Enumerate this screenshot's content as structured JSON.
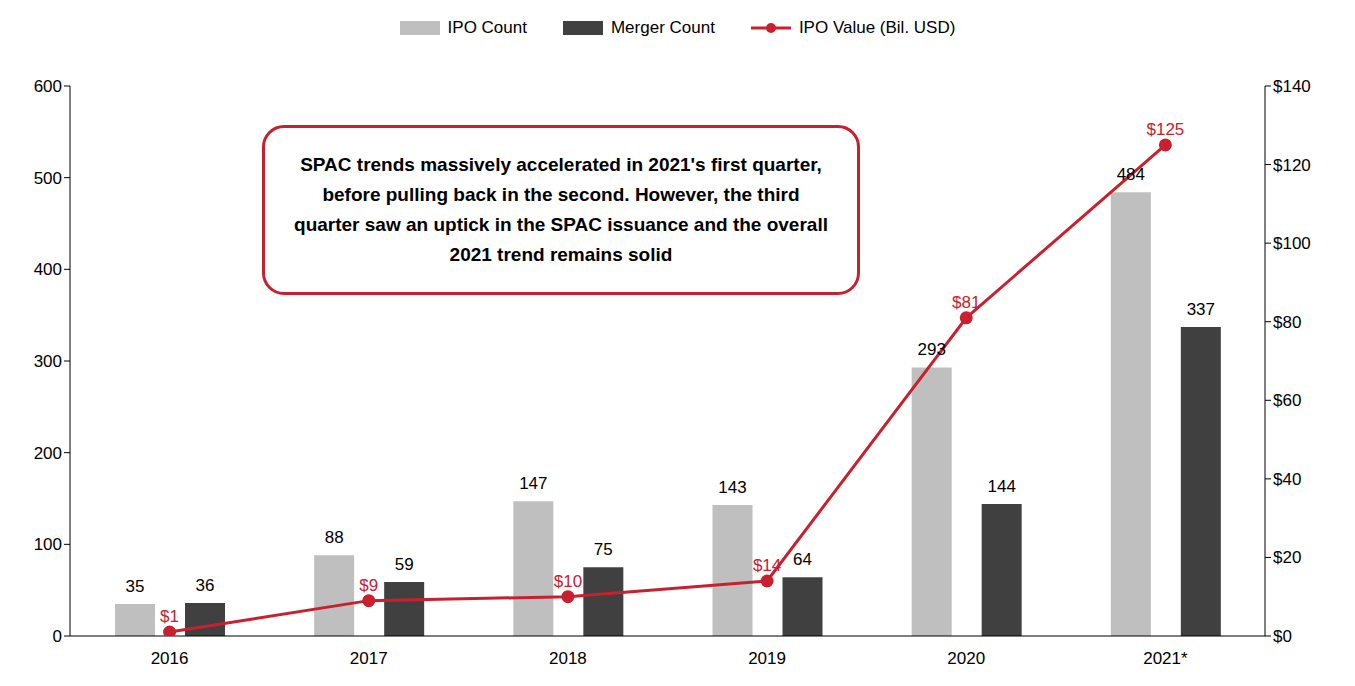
{
  "chart_data": {
    "type": "bar",
    "annotation": "SPAC trends massively accelerated in 2021's first quarter, before pulling back in the second. However, the third quarter saw an uptick in the SPAC issuance and the overall 2021 trend remains solid",
    "categories": [
      "2016",
      "2017",
      "2018",
      "2019",
      "2020",
      "2021*"
    ],
    "series": [
      {
        "name": "IPO Count",
        "color": "#bfbfbf",
        "values": [
          35,
          88,
          147,
          143,
          293,
          484
        ]
      },
      {
        "name": "Merger Count",
        "color": "#404040",
        "values": [
          36,
          59,
          75,
          64,
          144,
          337
        ]
      },
      {
        "name": "IPO Value (Bil. USD)",
        "color": "#c8202f",
        "type": "line",
        "axis": "y2",
        "marker": "circle",
        "values": [
          1,
          9,
          10,
          14,
          81,
          125
        ],
        "value_labels": [
          "$1",
          "$9",
          "$10",
          "$14",
          "$81",
          "$125"
        ]
      }
    ],
    "ylim": [
      0,
      600
    ],
    "yticks": [
      0,
      100,
      200,
      300,
      400,
      500,
      600
    ],
    "y2lim": [
      0,
      140
    ],
    "y2ticks": [
      {
        "value": 0,
        "label": "$0"
      },
      {
        "value": 20,
        "label": "$20"
      },
      {
        "value": 40,
        "label": "$40"
      },
      {
        "value": 60,
        "label": "$60"
      },
      {
        "value": 80,
        "label": "$80"
      },
      {
        "value": 100,
        "label": "$100"
      },
      {
        "value": 120,
        "label": "$120"
      },
      {
        "value": 140,
        "label": "$140"
      }
    ],
    "data_labels": true,
    "legend": "top",
    "grid": false
  }
}
